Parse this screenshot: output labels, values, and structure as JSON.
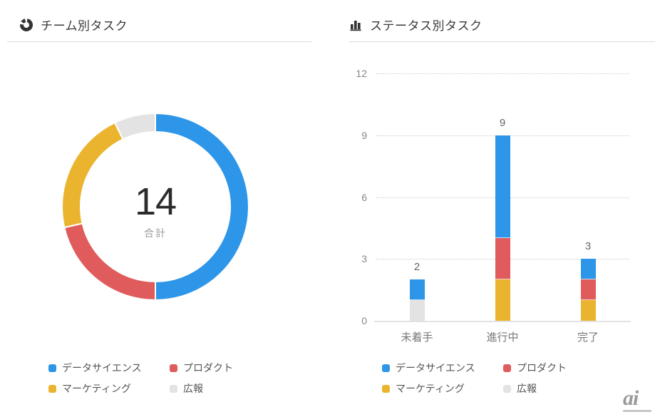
{
  "watermark": {
    "text": "ai"
  },
  "chart_data": [
    {
      "type": "pie",
      "subtype": "donut",
      "title": "チーム別タスク",
      "center_value": "14",
      "center_label": "合計",
      "total": 14,
      "legend_position": "bottom",
      "segments": [
        {
          "label": "データサイエンス",
          "value": 7,
          "color": "#2E96E8"
        },
        {
          "label": "プロダクト",
          "value": 3,
          "color": "#E05C5C"
        },
        {
          "label": "マーケティング",
          "value": 3,
          "color": "#EAB42E"
        },
        {
          "label": "広報",
          "value": 1,
          "color": "#E3E3E3"
        }
      ]
    },
    {
      "type": "bar",
      "subtype": "stacked",
      "title": "ステータス別タスク",
      "categories": [
        "未着手",
        "進行中",
        "完了"
      ],
      "series": [
        {
          "name": "データサイエンス",
          "color": "#2E96E8",
          "values": [
            1,
            5,
            1
          ]
        },
        {
          "name": "プロダクト",
          "color": "#E05C5C",
          "values": [
            0,
            2,
            1
          ]
        },
        {
          "name": "マーケティング",
          "color": "#EAB42E",
          "values": [
            0,
            2,
            1
          ]
        },
        {
          "name": "広報",
          "color": "#E3E3E3",
          "values": [
            1,
            0,
            0
          ]
        }
      ],
      "stack_order_bottom_to_top": [
        "広報",
        "マーケティング",
        "プロダクト",
        "データサイエンス"
      ],
      "totals": [
        2,
        9,
        3
      ],
      "yticks": [
        0,
        3,
        6,
        9,
        12
      ],
      "ylim": [
        0,
        12
      ],
      "grid": "horizontal-dotted",
      "legend_position": "bottom"
    }
  ]
}
